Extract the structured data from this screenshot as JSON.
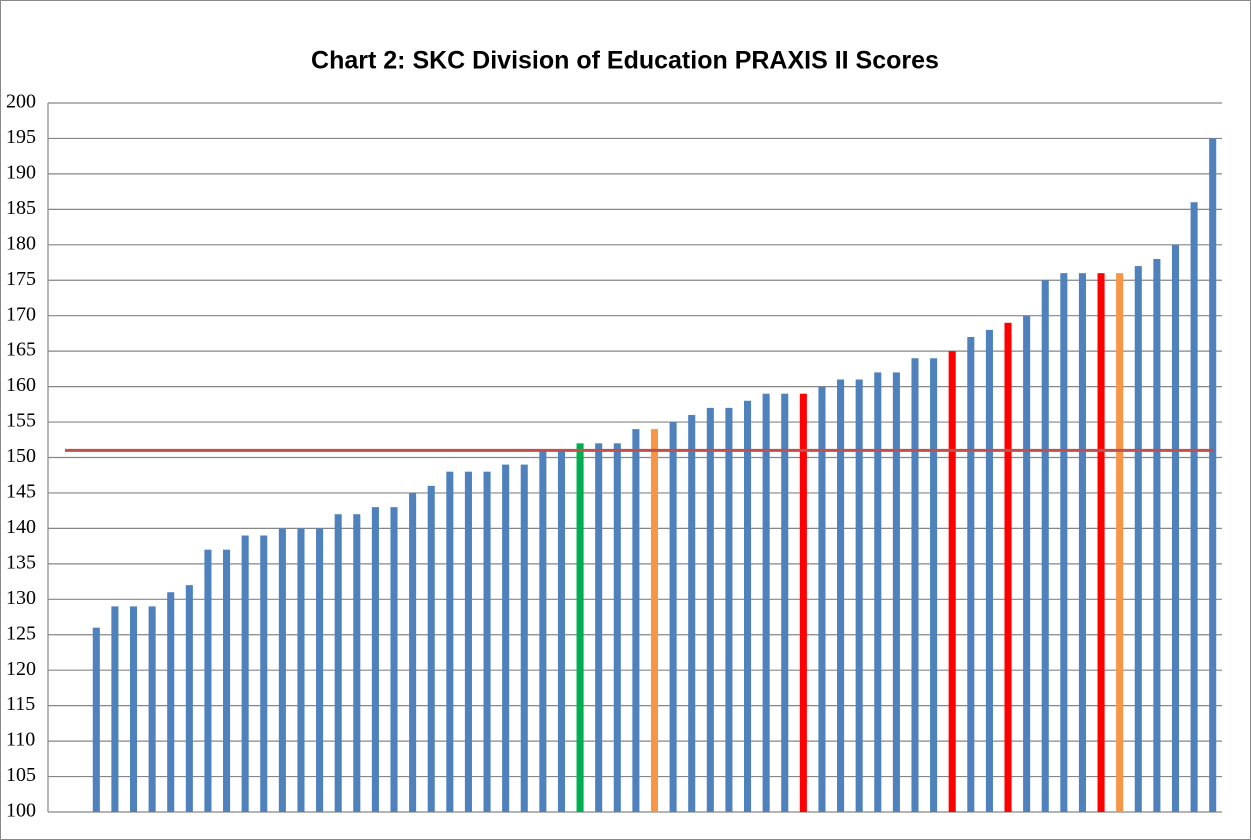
{
  "chart_data": {
    "type": "bar",
    "title": "Chart 2:  SKC Division of Education PRAXIS II Scores",
    "values": [
      126,
      129,
      129,
      129,
      131,
      132,
      137,
      137,
      139,
      139,
      140,
      140,
      140,
      142,
      142,
      143,
      143,
      145,
      146,
      148,
      148,
      148,
      149,
      149,
      151,
      151,
      152,
      152,
      152,
      154,
      154,
      155,
      156,
      157,
      157,
      158,
      159,
      159,
      159,
      160,
      161,
      161,
      162,
      162,
      164,
      164,
      165,
      167,
      168,
      169,
      170,
      175,
      176,
      176,
      176,
      176,
      177,
      178,
      180,
      186,
      195
    ],
    "colors": [
      "#4f81bd",
      "#4f81bd",
      "#4f81bd",
      "#4f81bd",
      "#4f81bd",
      "#4f81bd",
      "#4f81bd",
      "#4f81bd",
      "#4f81bd",
      "#4f81bd",
      "#4f81bd",
      "#4f81bd",
      "#4f81bd",
      "#4f81bd",
      "#4f81bd",
      "#4f81bd",
      "#4f81bd",
      "#4f81bd",
      "#4f81bd",
      "#4f81bd",
      "#4f81bd",
      "#4f81bd",
      "#4f81bd",
      "#4f81bd",
      "#4f81bd",
      "#4f81bd",
      "#00b050",
      "#4f81bd",
      "#4f81bd",
      "#4f81bd",
      "#f79646",
      "#4f81bd",
      "#4f81bd",
      "#4f81bd",
      "#4f81bd",
      "#4f81bd",
      "#4f81bd",
      "#4f81bd",
      "#ff0000",
      "#4f81bd",
      "#4f81bd",
      "#4f81bd",
      "#4f81bd",
      "#4f81bd",
      "#4f81bd",
      "#4f81bd",
      "#ff0000",
      "#4f81bd",
      "#4f81bd",
      "#ff0000",
      "#4f81bd",
      "#4f81bd",
      "#4f81bd",
      "#4f81bd",
      "#ff0000",
      "#f79646",
      "#4f81bd",
      "#4f81bd",
      "#4f81bd",
      "#4f81bd",
      "#4f81bd"
    ],
    "reference_line": 151,
    "reference_color": "#c0504d",
    "ylim": [
      100,
      200
    ],
    "yticks": [
      100,
      105,
      110,
      115,
      120,
      125,
      130,
      135,
      140,
      145,
      150,
      155,
      160,
      165,
      170,
      175,
      180,
      185,
      190,
      195,
      200
    ],
    "grid": true
  }
}
